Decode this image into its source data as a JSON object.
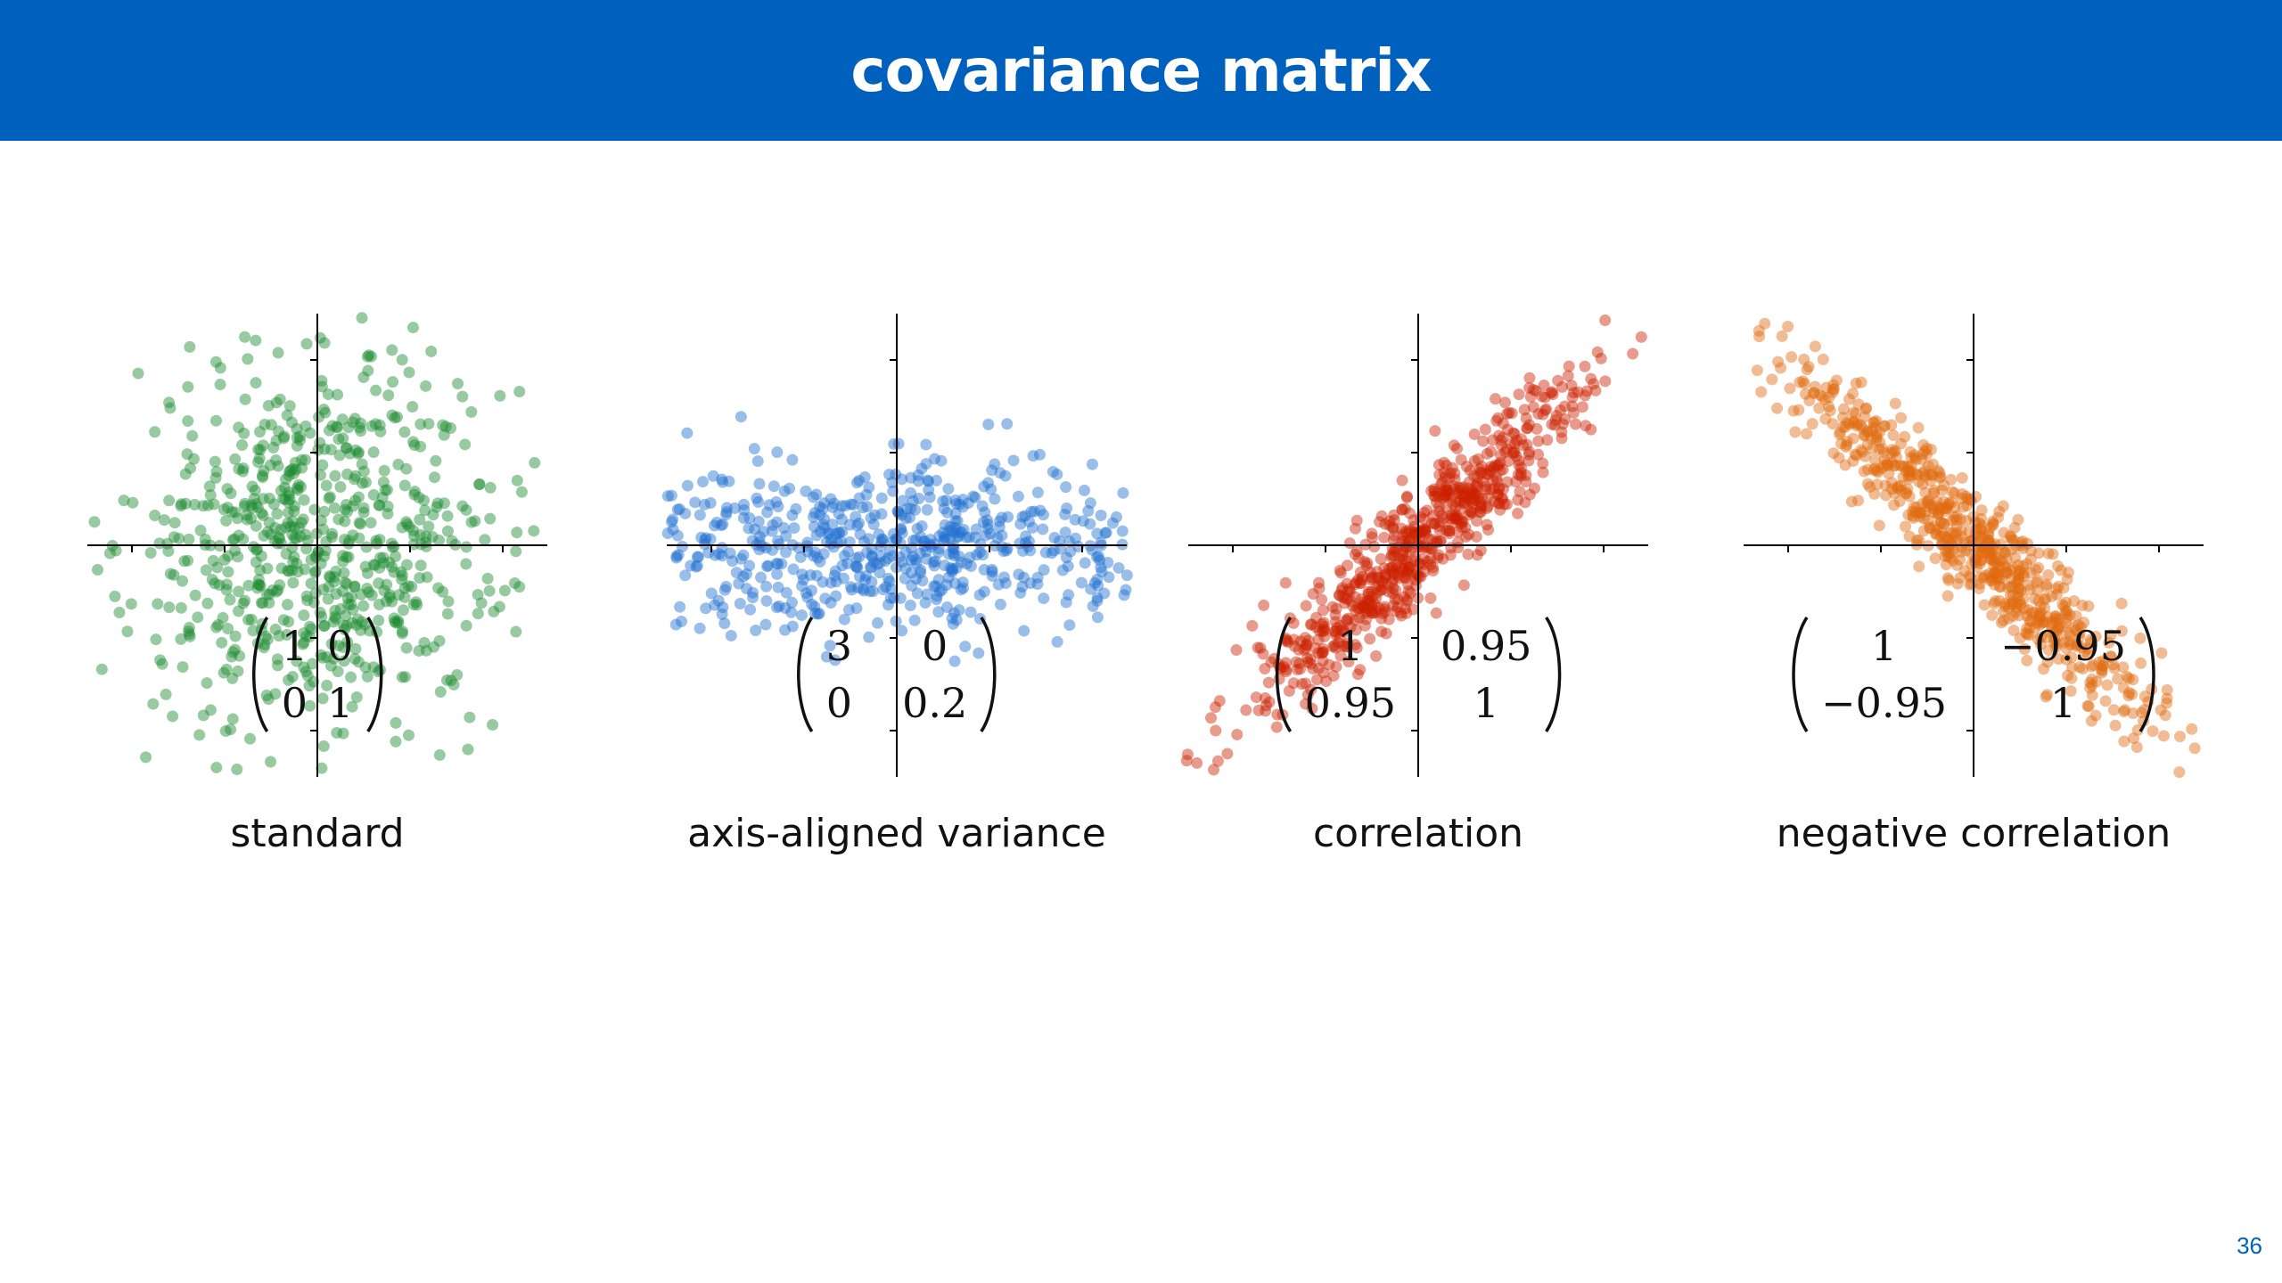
{
  "header": {
    "title": "covariance matrix"
  },
  "page_number": "36",
  "colors": {
    "header_bg": "#0060bd",
    "axis": "#000000"
  },
  "chart_data": [
    {
      "type": "scatter",
      "name": "standard",
      "caption": "standard",
      "color": "#1a8a2e",
      "covariance": [
        [
          1,
          0
        ],
        [
          0,
          1
        ]
      ],
      "matrix_labels": [
        "1",
        "0",
        "0",
        "1"
      ],
      "xlim": [
        -2.5,
        2.5
      ],
      "ylim": [
        -2.5,
        2.5
      ],
      "n_points": 700,
      "grid": false
    },
    {
      "type": "scatter",
      "name": "axis-aligned variance",
      "caption": "axis-aligned variance",
      "color": "#1f6fd0",
      "covariance": [
        [
          3,
          0
        ],
        [
          0,
          0.2
        ]
      ],
      "matrix_labels": [
        "3",
        "0",
        "0",
        "0.2"
      ],
      "xlim": [
        -2.5,
        2.5
      ],
      "ylim": [
        -2.5,
        2.5
      ],
      "n_points": 700,
      "grid": false
    },
    {
      "type": "scatter",
      "name": "correlation",
      "caption": "correlation",
      "color": "#cc2200",
      "covariance": [
        [
          1,
          0.95
        ],
        [
          0.95,
          1
        ]
      ],
      "matrix_labels": [
        "1",
        "0.95",
        "0.95",
        "1"
      ],
      "xlim": [
        -2.5,
        2.5
      ],
      "ylim": [
        -2.5,
        2.5
      ],
      "n_points": 700,
      "grid": false
    },
    {
      "type": "scatter",
      "name": "negative correlation",
      "caption": "negative correlation",
      "color": "#e06a10",
      "covariance": [
        [
          1,
          -0.95
        ],
        [
          -0.95,
          1
        ]
      ],
      "matrix_labels": [
        "1",
        "−0.95",
        "−0.95",
        "1"
      ],
      "xlim": [
        -2.5,
        2.5
      ],
      "ylim": [
        -2.5,
        2.5
      ],
      "n_points": 700,
      "grid": false
    }
  ]
}
